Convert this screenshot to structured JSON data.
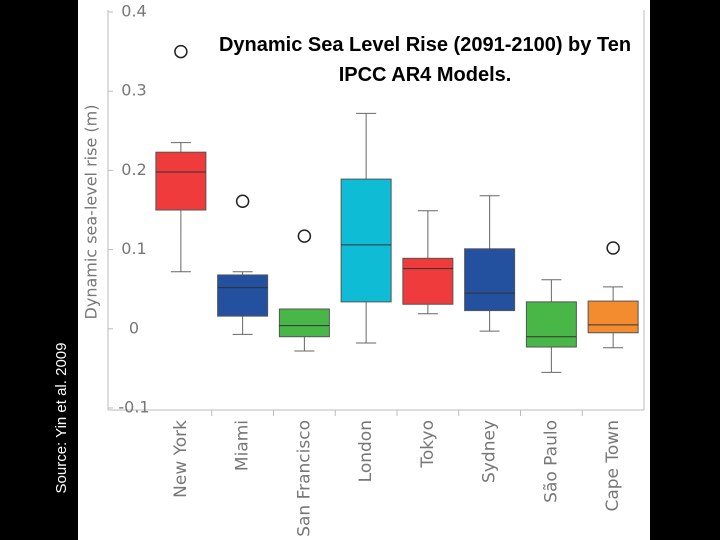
{
  "chart_data": {
    "type": "box",
    "title": "Dynamic Sea Level Rise (2091-2100) by Ten IPCC AR4 Models.",
    "ylabel": "Dynamic sea-level rise (m)",
    "source": "Source: Yin et al. 2009",
    "categories": [
      "New York",
      "Miami",
      "San Francisco",
      "London",
      "Tokyo",
      "Sydney",
      "São Paulo",
      "Cape Town"
    ],
    "colors": [
      "#ef3b3b",
      "#23509f",
      "#48b748",
      "#0fbcd6",
      "#ef3b3b",
      "#23509f",
      "#48b748",
      "#f28c2f"
    ],
    "boxes": [
      {
        "whisker_low": 0.072,
        "q1": 0.15,
        "median": 0.198,
        "q3": 0.223,
        "whisker_high": 0.235,
        "outliers": [
          0.35
        ]
      },
      {
        "whisker_low": -0.007,
        "q1": 0.016,
        "median": 0.052,
        "q3": 0.068,
        "whisker_high": 0.072,
        "outliers": [
          0.161
        ]
      },
      {
        "whisker_low": -0.028,
        "q1": -0.01,
        "median": 0.004,
        "q3": 0.025,
        "whisker_high": 0.025,
        "outliers": [
          0.117
        ]
      },
      {
        "whisker_low": -0.018,
        "q1": 0.034,
        "median": 0.106,
        "q3": 0.189,
        "whisker_high": 0.272,
        "outliers": []
      },
      {
        "whisker_low": 0.019,
        "q1": 0.031,
        "median": 0.076,
        "q3": 0.089,
        "whisker_high": 0.149,
        "outliers": []
      },
      {
        "whisker_low": -0.003,
        "q1": 0.023,
        "median": 0.045,
        "q3": 0.101,
        "whisker_high": 0.168,
        "outliers": []
      },
      {
        "whisker_low": -0.055,
        "q1": -0.023,
        "median": -0.01,
        "q3": 0.034,
        "whisker_high": 0.062,
        "outliers": []
      },
      {
        "whisker_low": -0.024,
        "q1": -0.005,
        "median": 0.005,
        "q3": 0.035,
        "whisker_high": 0.053,
        "outliers": [
          0.102
        ]
      }
    ],
    "ylim": [
      -0.1,
      0.4
    ],
    "yticks": [
      -0.1,
      0,
      0.1,
      0.2,
      0.3,
      0.4
    ]
  }
}
